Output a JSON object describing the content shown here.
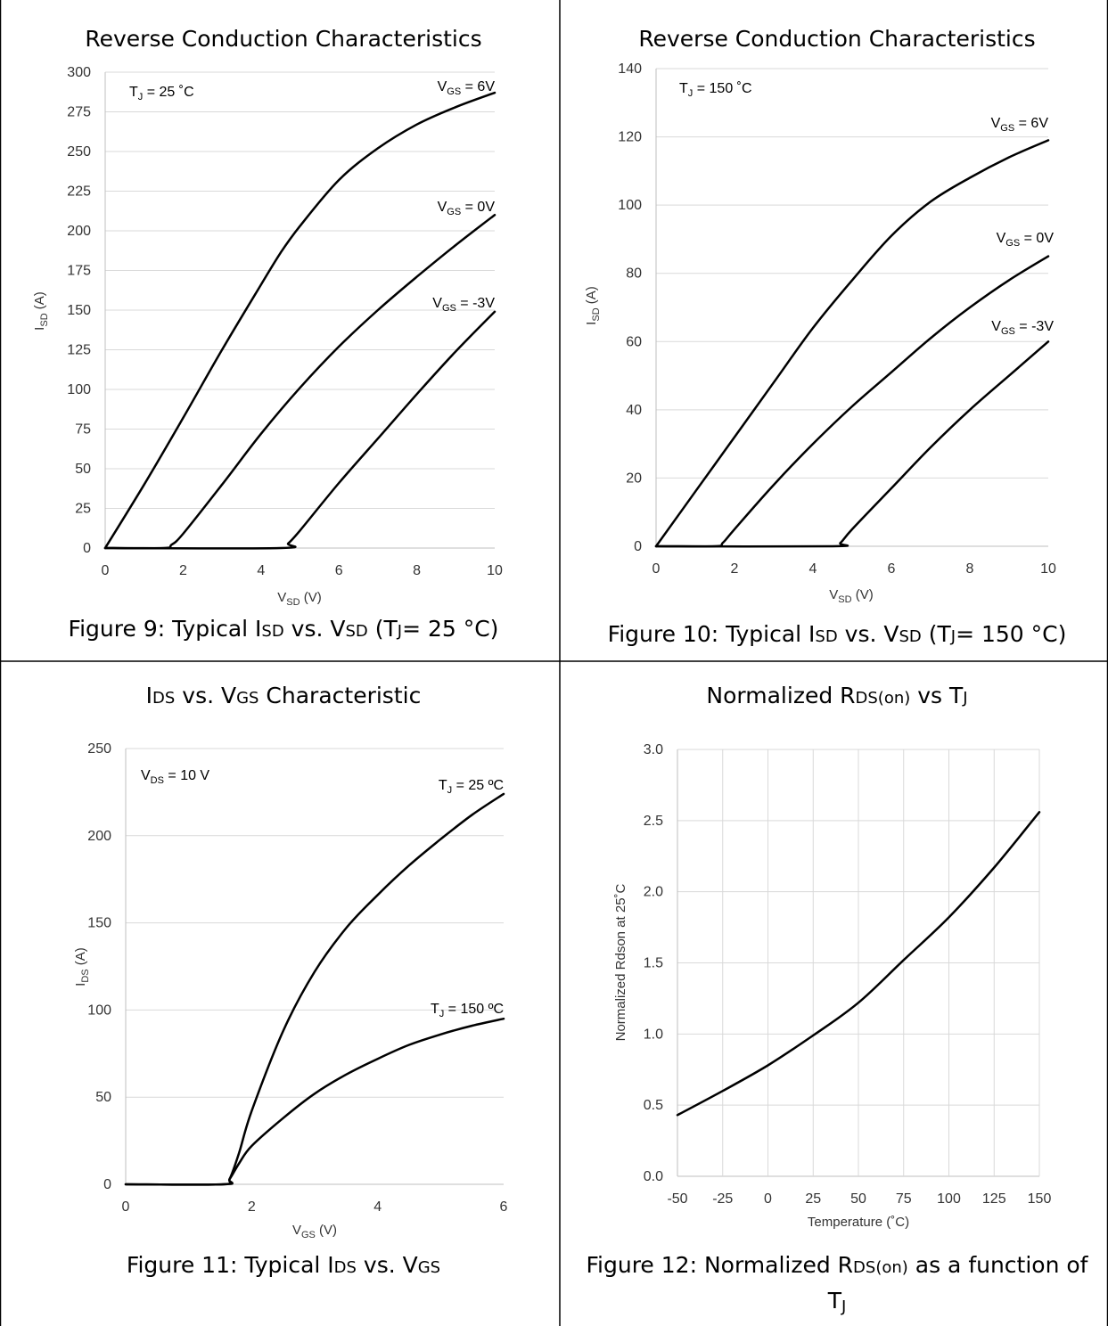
{
  "charts": [
    {
      "title": {
        "base": "Reverse Conduction Characteristics"
      },
      "caption": {
        "pre": "Figure 9: Typical I",
        "s1": "SD",
        "mid1": " vs. V",
        "s2": "SD",
        "mid2": " (T",
        "s3": "J",
        "post": "= 25 °C)"
      },
      "ylabel": {
        "base": "I",
        "sub": "SD",
        "rest": " (A)"
      },
      "xlabel": {
        "base": "V",
        "sub": "SD",
        "rest": " (V)"
      },
      "annotation": {
        "base": "T",
        "sub": "J",
        "rest": " = 25 ˚C"
      }
    },
    {
      "title": {
        "base": "Reverse Conduction Characteristics"
      },
      "caption": {
        "pre": "Figure 10: Typical I",
        "s1": "SD",
        "mid1": " vs. V",
        "s2": "SD",
        "mid2": " (T",
        "s3": "J",
        "post": "= 150 °C)"
      },
      "ylabel": {
        "base": "I",
        "sub": "SD",
        "rest": " (A)"
      },
      "xlabel": {
        "base": "V",
        "sub": "SD",
        "rest": " (V)"
      },
      "annotation": {
        "base": "T",
        "sub": "J",
        "rest": " = 150 ˚C"
      }
    },
    {
      "title": {
        "base": "I",
        "sub": "DS",
        "mid": " vs. V",
        "sub2": "GS",
        "rest": " Characteristic"
      },
      "caption": {
        "pre": "Figure 11: Typical I",
        "s1": "DS",
        "mid1": " vs. V",
        "s2": "GS"
      },
      "ylabel": {
        "base": "I",
        "sub": "DS",
        "rest": " (A)"
      },
      "xlabel": {
        "base": "V",
        "sub": "GS",
        "rest": " (V)"
      },
      "annotation": {
        "base": "V",
        "sub": "DS",
        "rest": " = 10 V"
      }
    },
    {
      "title": {
        "base": "Normalized R",
        "sub": "DS(on)",
        "mid": " vs T",
        "sub2": "J"
      },
      "caption": {
        "pre": "Figure 12: Normalized R",
        "s1": "DS(on)",
        "post": " as a function of",
        "line2": "T",
        "line2sub": "J"
      },
      "ylabel": {
        "text": "Normalized Rdson at 25˚C"
      },
      "xlabel": {
        "text": "Temperature (˚C)"
      }
    }
  ],
  "chart_data": [
    {
      "type": "line",
      "title": "Reverse Conduction Characteristics",
      "xlabel": "VSD (V)",
      "ylabel": "ISD (A)",
      "xlim": [
        0,
        10
      ],
      "ylim": [
        0,
        300
      ],
      "xticks": [
        0,
        2,
        4,
        6,
        8,
        10
      ],
      "yticks": [
        0,
        25,
        50,
        75,
        100,
        125,
        150,
        175,
        200,
        225,
        250,
        275,
        300
      ],
      "grid": "horizontal",
      "series": [
        {
          "name": "VGS = 6V",
          "label": {
            "base": "V",
            "sub": "GS",
            "rest": " = 6V"
          },
          "x": [
            0,
            1,
            2,
            3,
            4,
            4.5,
            5,
            6,
            7,
            8,
            9,
            10
          ],
          "y": [
            0,
            40,
            82,
            125,
            166,
            186,
            203,
            232,
            252,
            267,
            278,
            287
          ]
        },
        {
          "name": "VGS = 0V",
          "label": {
            "base": "V",
            "sub": "GS",
            "rest": " = 0V"
          },
          "x": [
            0,
            1.5,
            1.7,
            2,
            3,
            4,
            5,
            6,
            7,
            8,
            9,
            10
          ],
          "y": [
            0,
            0,
            2,
            9,
            40,
            72,
            101,
            127,
            150,
            171,
            191,
            210
          ]
        },
        {
          "name": "VGS = -3V",
          "label": {
            "base": "V",
            "sub": "GS",
            "rest": " = -3V"
          },
          "x": [
            0,
            4.5,
            4.7,
            5,
            6,
            7,
            8,
            9,
            10
          ],
          "y": [
            0,
            0,
            3,
            11,
            41,
            69,
            97,
            124,
            149
          ]
        }
      ]
    },
    {
      "type": "line",
      "title": "Reverse Conduction Characteristics",
      "xlabel": "VSD (V)",
      "ylabel": "ISD (A)",
      "xlim": [
        0,
        10
      ],
      "ylim": [
        0,
        140
      ],
      "xticks": [
        0,
        2,
        4,
        6,
        8,
        10
      ],
      "yticks": [
        0,
        20,
        40,
        60,
        80,
        100,
        120,
        140
      ],
      "grid": "horizontal",
      "series": [
        {
          "name": "VGS = 6V",
          "label": {
            "base": "V",
            "sub": "GS",
            "rest": " = 6V"
          },
          "x": [
            0,
            1,
            2,
            3,
            4,
            5,
            6,
            7,
            8,
            9,
            10
          ],
          "y": [
            0,
            16,
            32,
            48,
            64,
            78,
            91,
            101,
            108,
            114,
            119
          ]
        },
        {
          "name": "VGS = 0V",
          "label": {
            "base": "V",
            "sub": "GS",
            "rest": " = 0V"
          },
          "x": [
            0,
            1.5,
            1.7,
            2,
            3,
            4,
            5,
            6,
            7,
            8,
            9,
            10
          ],
          "y": [
            0,
            0,
            1,
            5,
            18,
            30,
            41,
            51,
            61,
            70,
            78,
            85
          ]
        },
        {
          "name": "VGS = -3V",
          "label": {
            "base": "V",
            "sub": "GS",
            "rest": " = -3V"
          },
          "x": [
            0,
            4.5,
            4.7,
            5,
            6,
            7,
            8,
            9,
            10
          ],
          "y": [
            0,
            0,
            1,
            5,
            17,
            29,
            40,
            50,
            60
          ]
        }
      ]
    },
    {
      "type": "line",
      "title": "IDS vs. VGS Characteristic",
      "xlabel": "VGS (V)",
      "ylabel": "IDS (A)",
      "xlim": [
        0,
        6
      ],
      "ylim": [
        0,
        250
      ],
      "xticks": [
        0,
        2,
        4,
        6
      ],
      "yticks": [
        0,
        50,
        100,
        150,
        200,
        250
      ],
      "grid": "horizontal",
      "series": [
        {
          "name": "TJ = 25 ºC",
          "label": {
            "base": "T",
            "sub": "J",
            "rest": " = 25 ºC"
          },
          "x": [
            0,
            1.55,
            1.65,
            1.8,
            2,
            2.5,
            3,
            3.5,
            4,
            4.5,
            5,
            5.5,
            6
          ],
          "y": [
            0,
            0,
            3,
            18,
            42,
            88,
            122,
            147,
            166,
            183,
            198,
            212,
            224
          ]
        },
        {
          "name": "TJ = 150 ºC",
          "label": {
            "base": "T",
            "sub": "J",
            "rest": " = 150 ºC"
          },
          "x": [
            0,
            1.55,
            1.65,
            1.8,
            2,
            2.5,
            3,
            3.5,
            4,
            4.5,
            5,
            5.5,
            6
          ],
          "y": [
            0,
            0,
            3,
            12,
            22,
            38,
            52,
            63,
            72,
            80,
            86,
            91,
            95
          ]
        }
      ]
    },
    {
      "type": "line",
      "title": "Normalized RDS(on) vs TJ",
      "xlabel": "Temperature (˚C)",
      "ylabel": "Normalized Rdson at 25˚C",
      "xlim": [
        -50,
        150
      ],
      "ylim": [
        0,
        3.0
      ],
      "xticks": [
        -50,
        -25,
        0,
        25,
        50,
        75,
        100,
        125,
        150
      ],
      "yticks": [
        0.0,
        0.5,
        1.0,
        1.5,
        2.0,
        2.5,
        3.0
      ],
      "grid": "both",
      "series": [
        {
          "x": [
            -50,
            -25,
            0,
            25,
            50,
            75,
            100,
            125,
            150
          ],
          "y": [
            0.43,
            0.6,
            0.78,
            0.99,
            1.22,
            1.52,
            1.82,
            2.17,
            2.56
          ]
        }
      ]
    }
  ]
}
